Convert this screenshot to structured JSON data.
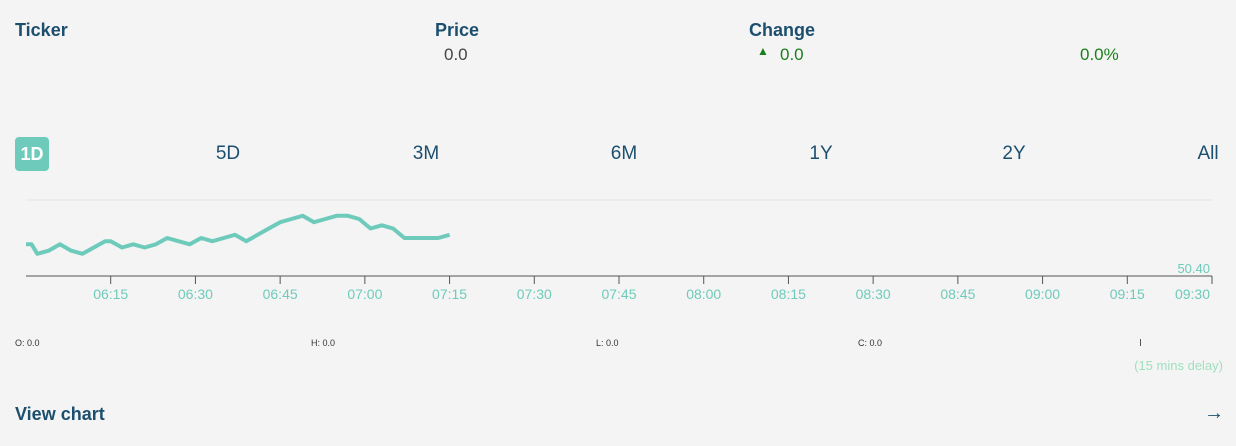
{
  "header": {
    "ticker_label": "Ticker",
    "price_label": "Price",
    "change_label": "Change",
    "price_value": "0.0",
    "change_value": "0.0",
    "change_pct": "0.0%",
    "change_direction_icon": "triangle-up-icon",
    "positive_color": "#1a7f1a"
  },
  "tabs": [
    {
      "label": "1D",
      "active": true
    },
    {
      "label": "5D",
      "active": false
    },
    {
      "label": "3M",
      "active": false
    },
    {
      "label": "6M",
      "active": false
    },
    {
      "label": "1Y",
      "active": false
    },
    {
      "label": "2Y",
      "active": false
    },
    {
      "label": "All",
      "active": false
    }
  ],
  "stats": {
    "open": "O: 0.0",
    "high": "H: 0.0",
    "low": "L: 0.0",
    "close": "C: 0.0"
  },
  "delay_note": "(15 mins delay)",
  "view_chart_label": "View chart",
  "colors": {
    "line": "#6ecbbb",
    "accent": "#6ecbbb",
    "text": "#1c4f6e"
  },
  "chart_data": {
    "type": "line",
    "x_ticks": [
      "06:15",
      "06:30",
      "06:45",
      "07:00",
      "07:15",
      "07:30",
      "07:45",
      "08:00",
      "08:15",
      "08:30",
      "08:45",
      "09:00",
      "09:15",
      "09:30"
    ],
    "ylabel_value": "50.40",
    "grid": false,
    "x": [
      "06:00",
      "06:01",
      "06:02",
      "06:04",
      "06:06",
      "06:08",
      "06:10",
      "06:12",
      "06:14",
      "06:15",
      "06:17",
      "06:19",
      "06:21",
      "06:23",
      "06:25",
      "06:27",
      "06:29",
      "06:31",
      "06:33",
      "06:35",
      "06:37",
      "06:39",
      "06:41",
      "06:43",
      "06:45",
      "06:47",
      "06:49",
      "06:51",
      "06:53",
      "06:55",
      "06:57",
      "06:59",
      "07:01",
      "07:03",
      "07:05",
      "07:07",
      "07:09",
      "07:11",
      "07:13",
      "07:15"
    ],
    "values": [
      50.5,
      50.5,
      50.47,
      50.48,
      50.5,
      50.48,
      50.47,
      50.49,
      50.51,
      50.51,
      50.49,
      50.5,
      50.49,
      50.5,
      50.52,
      50.51,
      50.5,
      50.52,
      50.51,
      50.52,
      50.53,
      50.51,
      50.53,
      50.55,
      50.57,
      50.58,
      50.59,
      50.57,
      50.58,
      50.59,
      50.59,
      50.58,
      50.55,
      50.56,
      50.55,
      50.52,
      50.52,
      50.52,
      50.52,
      50.53
    ],
    "ylim": [
      50.4,
      50.64
    ]
  }
}
